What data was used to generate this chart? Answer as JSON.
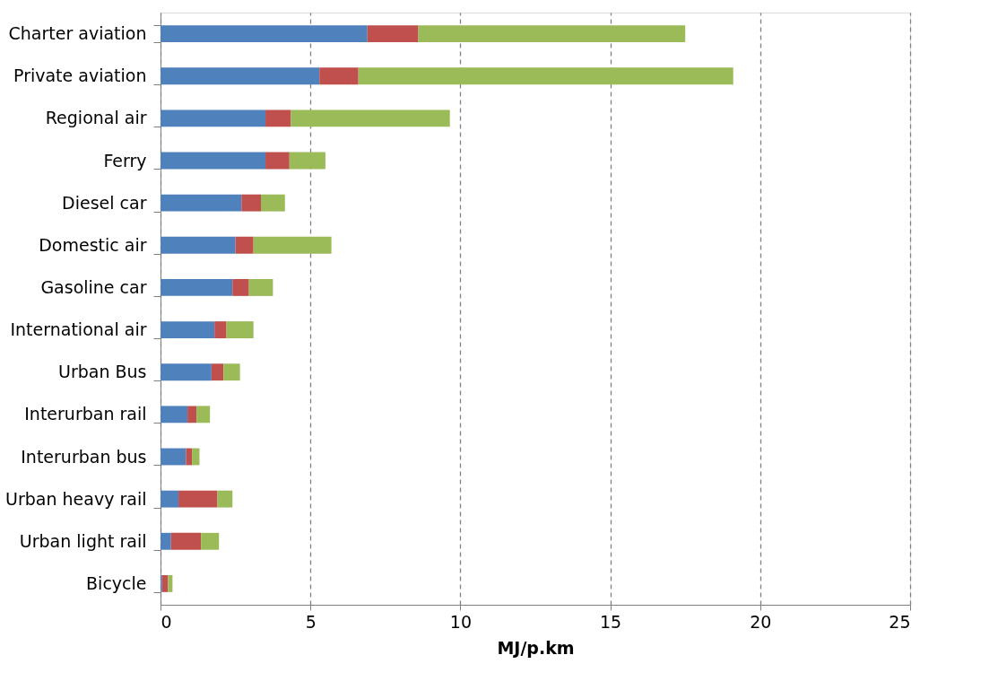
{
  "chart_data": {
    "type": "bar",
    "orientation": "horizontal",
    "stacked": true,
    "xlabel": "MJ/p.km",
    "categories": [
      "Charter aviation",
      "Private aviation",
      "Regional air",
      "Ferry",
      "Diesel car",
      "Domestic air",
      "Gasoline car",
      "International air",
      "Urban Bus",
      "Interurban rail",
      "Interurban bus",
      "Urban heavy rail",
      "Urban light rail",
      "Bicycle"
    ],
    "series": [
      {
        "color": "#4f81bd",
        "values": [
          6.9,
          5.3,
          3.5,
          3.5,
          2.7,
          2.5,
          2.4,
          1.8,
          1.7,
          0.9,
          0.85,
          0.6,
          0.35,
          0.05
        ]
      },
      {
        "color": "#c0504d",
        "values": [
          1.7,
          1.3,
          0.85,
          0.8,
          0.65,
          0.6,
          0.55,
          0.4,
          0.4,
          0.3,
          0.2,
          1.3,
          1.0,
          0.2
        ]
      },
      {
        "color": "#9bbb59",
        "values": [
          8.9,
          12.5,
          5.3,
          1.2,
          0.8,
          2.6,
          0.8,
          0.9,
          0.55,
          0.45,
          0.25,
          0.5,
          0.6,
          0.15
        ]
      }
    ],
    "xlim": [
      0,
      25
    ],
    "xticks": [
      0,
      5,
      10,
      15,
      20,
      25
    ],
    "grid": "x",
    "legend": false
  }
}
